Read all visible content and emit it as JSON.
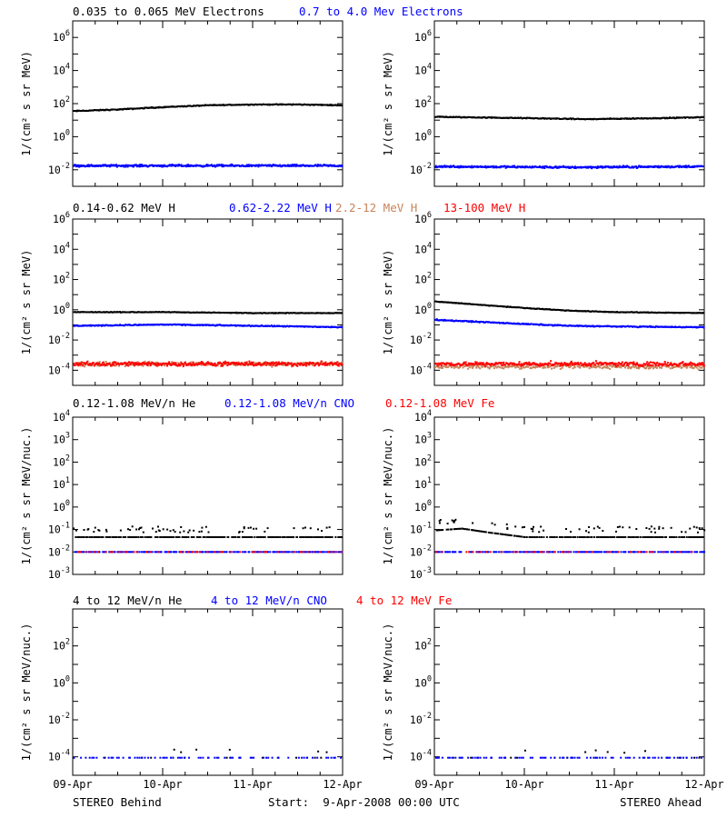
{
  "colors": {
    "black": "#000000",
    "blue": "#0000ff",
    "red": "#ff0000",
    "tan": "#c8845a"
  },
  "x_axis": {
    "ticks": [
      "09-Apr",
      "10-Apr",
      "11-Apr",
      "12-Apr"
    ],
    "range_days": [
      0,
      3
    ]
  },
  "footer": {
    "left": "STEREO Behind",
    "center": "Start:  9-Apr-2008 00:00 UTC",
    "right": "STEREO Ahead"
  },
  "legends": [
    [
      {
        "text": "0.035 to 0.065 MeV Electrons",
        "color": "black"
      },
      {
        "text": "0.7 to 4.0 Mev Electrons",
        "color": "blue"
      }
    ],
    [
      {
        "text": "0.14-0.62 MeV H",
        "color": "black"
      },
      {
        "text": "0.62-2.22 MeV H",
        "color": "blue"
      },
      {
        "text": "2.2-12 MeV H",
        "color": "tan"
      },
      {
        "text": "13-100 MeV H",
        "color": "red"
      }
    ],
    [
      {
        "text": "0.12-1.08 MeV/n He",
        "color": "black"
      },
      {
        "text": "0.12-1.08 MeV/n CNO",
        "color": "blue"
      },
      {
        "text": "0.12-1.08 MeV Fe",
        "color": "red"
      }
    ],
    [
      {
        "text": "4 to 12 MeV/n He",
        "color": "black"
      },
      {
        "text": "4 to 12 MeV/n CNO",
        "color": "blue"
      },
      {
        "text": "4 to 12 MeV Fe",
        "color": "red"
      }
    ]
  ],
  "chart_data": [
    {
      "type": "scatter",
      "row": 0,
      "spacecraft": "STEREO Behind",
      "ylabel": "1/(cm² s sr MeV)",
      "yscale": "log",
      "ylim_exp": [
        -3,
        7
      ],
      "yticks": [
        "10^-2",
        "10^0",
        "10^2",
        "10^4",
        "10^6"
      ],
      "series": [
        {
          "name": "0.035 to 0.065 MeV Electrons",
          "color": "black",
          "x": [
            0,
            0.5,
            1.0,
            1.5,
            2.0,
            2.5,
            3.0
          ],
          "y": [
            40,
            50,
            70,
            90,
            100,
            100,
            90
          ]
        },
        {
          "name": "0.7 to 4.0 Mev Electrons",
          "color": "blue",
          "x": [
            0,
            1.5,
            3.0
          ],
          "y": [
            0.02,
            0.02,
            0.02
          ]
        }
      ]
    },
    {
      "type": "scatter",
      "row": 0,
      "spacecraft": "STEREO Ahead",
      "ylabel": "1/(cm² s sr MeV)",
      "yscale": "log",
      "ylim_exp": [
        -3,
        7
      ],
      "yticks": [
        "10^-2",
        "10^0",
        "10^2",
        "10^4",
        "10^6"
      ],
      "series": [
        {
          "name": "0.035 to 0.065 MeV Electrons",
          "color": "black",
          "x": [
            0,
            1.0,
            1.7,
            2.5,
            3.0
          ],
          "y": [
            18,
            15,
            13,
            15,
            17
          ]
        },
        {
          "name": "0.7 to 4.0 Mev Electrons",
          "color": "blue",
          "x": [
            0,
            1.5,
            3.0
          ],
          "y": [
            0.018,
            0.016,
            0.018
          ]
        }
      ]
    },
    {
      "type": "scatter",
      "row": 1,
      "spacecraft": "STEREO Behind",
      "ylabel": "1/(cm² s sr MeV)",
      "yscale": "log",
      "ylim_exp": [
        -5,
        6
      ],
      "yticks": [
        "10^-4",
        "10^-2",
        "10^0",
        "10^2",
        "10^4",
        "10^6"
      ],
      "series": [
        {
          "name": "0.14-0.62 MeV H",
          "color": "black",
          "x": [
            0,
            1.0,
            2.0,
            3.0
          ],
          "y": [
            0.8,
            0.8,
            0.7,
            0.7
          ]
        },
        {
          "name": "0.62-2.22 MeV H",
          "color": "blue",
          "x": [
            0,
            1.0,
            2.0,
            3.0
          ],
          "y": [
            0.1,
            0.12,
            0.1,
            0.08
          ]
        },
        {
          "name": "2.2-12 MeV H",
          "color": "tan",
          "x": [
            0,
            1.5,
            3.0
          ],
          "y": [
            0.0003,
            0.0003,
            0.0003
          ]
        },
        {
          "name": "13-100 MeV H",
          "color": "red",
          "x": [
            0,
            1.5,
            3.0
          ],
          "y": [
            0.0003,
            0.0003,
            0.0003
          ]
        }
      ]
    },
    {
      "type": "scatter",
      "row": 1,
      "spacecraft": "STEREO Ahead",
      "ylabel": "1/(cm² s sr MeV)",
      "yscale": "log",
      "ylim_exp": [
        -5,
        6
      ],
      "yticks": [
        "10^-4",
        "10^-2",
        "10^0",
        "10^2",
        "10^4",
        "10^6"
      ],
      "series": [
        {
          "name": "0.14-0.62 MeV H",
          "color": "black",
          "x": [
            0,
            0.3,
            0.6,
            1.0,
            1.5,
            2.0,
            3.0
          ],
          "y": [
            4,
            3,
            2.2,
            1.5,
            1.0,
            0.8,
            0.7
          ]
        },
        {
          "name": "0.62-2.22 MeV H",
          "color": "blue",
          "x": [
            0,
            0.5,
            1.0,
            1.5,
            2.0,
            3.0
          ],
          "y": [
            0.25,
            0.18,
            0.13,
            0.1,
            0.09,
            0.08
          ]
        },
        {
          "name": "2.2-12 MeV H",
          "color": "tan",
          "x": [
            0,
            1.5,
            3.0
          ],
          "y": [
            0.0002,
            0.0002,
            0.0002
          ]
        },
        {
          "name": "13-100 MeV H",
          "color": "red",
          "x": [
            0,
            1.5,
            3.0
          ],
          "y": [
            0.0003,
            0.0003,
            0.0003
          ]
        }
      ]
    },
    {
      "type": "scatter",
      "row": 2,
      "spacecraft": "STEREO Behind",
      "ylabel": "1/(cm² s sr MeV/nuc.)",
      "yscale": "log",
      "ylim_exp": [
        -3,
        4
      ],
      "yticks": [
        "10^-3",
        "10^-2",
        "10^-1",
        "10^0",
        "10^1",
        "10^2",
        "10^3",
        "10^4"
      ],
      "series": [
        {
          "name": "0.12-1.08 MeV/n He",
          "color": "black",
          "x": [
            0,
            1.5,
            3.0
          ],
          "y": [
            0.05,
            0.05,
            0.05
          ]
        },
        {
          "name": "0.12-1.08 MeV/n CNO",
          "color": "blue",
          "x": [
            0,
            1.5,
            3.0
          ],
          "y": [
            0.011,
            0.011,
            0.011
          ]
        },
        {
          "name": "0.12-1.08 MeV Fe",
          "color": "red",
          "x": [
            0,
            1.5,
            3.0
          ],
          "y": [
            0.011,
            0.011,
            0.011
          ]
        }
      ]
    },
    {
      "type": "scatter",
      "row": 2,
      "spacecraft": "STEREO Ahead",
      "ylabel": "1/(cm² s sr MeV/nuc.)",
      "yscale": "log",
      "ylim_exp": [
        -3,
        4
      ],
      "yticks": [
        "10^-3",
        "10^-2",
        "10^-1",
        "10^0",
        "10^1",
        "10^2",
        "10^3",
        "10^4"
      ],
      "series": [
        {
          "name": "0.12-1.08 MeV/n He",
          "color": "black",
          "x": [
            0,
            0.3,
            0.6,
            1.0,
            3.0
          ],
          "y": [
            0.1,
            0.12,
            0.08,
            0.05,
            0.05
          ]
        },
        {
          "name": "0.12-1.08 MeV/n CNO",
          "color": "blue",
          "x": [
            0,
            1.5,
            3.0
          ],
          "y": [
            0.011,
            0.011,
            0.011
          ]
        },
        {
          "name": "0.12-1.08 MeV Fe",
          "color": "red",
          "x": [
            0,
            1.5,
            3.0
          ],
          "y": [
            0.011,
            0.011,
            0.011
          ]
        }
      ]
    },
    {
      "type": "scatter",
      "row": 3,
      "spacecraft": "STEREO Behind",
      "ylabel": "1/(cm² s sr MeV/nuc.)",
      "yscale": "log",
      "ylim_exp": [
        -5,
        4
      ],
      "yticks": [
        "10^-4",
        "10^-2",
        "10^0",
        "10^2"
      ],
      "series": [
        {
          "name": "4 to 12 MeV/n He",
          "color": "black",
          "x": [
            0,
            1.5,
            3.0
          ],
          "y": [
            0.0001,
            0.0001,
            0.0001
          ]
        },
        {
          "name": "4 to 12 MeV/n CNO",
          "color": "blue",
          "x": [
            0,
            1.5,
            3.0
          ],
          "y": [
            0.0001,
            0.0001,
            0.0001
          ]
        },
        {
          "name": "4 to 12 MeV Fe",
          "color": "red",
          "x": [],
          "y": []
        }
      ]
    },
    {
      "type": "scatter",
      "row": 3,
      "spacecraft": "STEREO Ahead",
      "ylabel": "1/(cm² s sr MeV/nuc.)",
      "yscale": "log",
      "ylim_exp": [
        -5,
        4
      ],
      "yticks": [
        "10^-4",
        "10^-2",
        "10^0",
        "10^2"
      ],
      "series": [
        {
          "name": "4 to 12 MeV/n He",
          "color": "black",
          "x": [
            0,
            1.5,
            3.0
          ],
          "y": [
            0.0001,
            0.0001,
            0.0001
          ]
        },
        {
          "name": "4 to 12 MeV/n CNO",
          "color": "blue",
          "x": [
            0,
            1.5,
            3.0
          ],
          "y": [
            0.0001,
            0.0001,
            0.0001
          ]
        },
        {
          "name": "4 to 12 MeV Fe",
          "color": "red",
          "x": [],
          "y": []
        }
      ]
    }
  ]
}
